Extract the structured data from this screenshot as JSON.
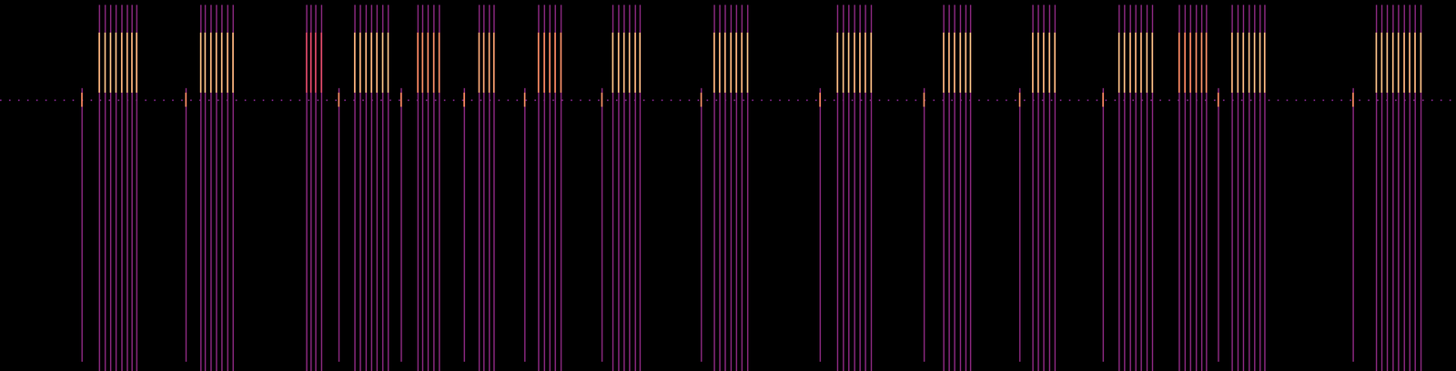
{
  "chart_data": {
    "type": "spectrogram",
    "tick_labels": false,
    "xlim": [
      0,
      1568
    ],
    "ylim": [
      0,
      400
    ],
    "bright_band": [
      300,
      365
    ],
    "faint_band": [
      0,
      395
    ],
    "faint_level": 0.4,
    "calls": [
      {
        "x": [
          107,
          113,
          119,
          125,
          131,
          137,
          142,
          147
        ],
        "level": 0.85
      },
      {
        "x": [
          216,
          221,
          227,
          233,
          239,
          245,
          251
        ],
        "level": 0.85
      },
      {
        "x": [
          330,
          335,
          340,
          346
        ],
        "level": 0.6
      },
      {
        "x": [
          382,
          388,
          394,
          400,
          406,
          412,
          418
        ],
        "level": 0.85
      },
      {
        "x": [
          450,
          455,
          461,
          467,
          473
        ],
        "level": 0.75
      },
      {
        "x": [
          516,
          521,
          527,
          532
        ],
        "level": 0.8
      },
      {
        "x": [
          580,
          586,
          592,
          598,
          604
        ],
        "level": 0.75
      },
      {
        "x": [
          660,
          666,
          672,
          678,
          684,
          689
        ],
        "level": 0.85
      },
      {
        "x": [
          769,
          775,
          781,
          787,
          793,
          799,
          805
        ],
        "level": 0.85
      },
      {
        "x": [
          902,
          908,
          914,
          920,
          926,
          932,
          938
        ],
        "level": 0.85
      },
      {
        "x": [
          1016,
          1022,
          1028,
          1034,
          1040,
          1045
        ],
        "level": 0.85
      },
      {
        "x": [
          1112,
          1118,
          1124,
          1130,
          1136
        ],
        "level": 0.85
      },
      {
        "x": [
          1205,
          1211,
          1217,
          1223,
          1229,
          1235,
          1241
        ],
        "level": 0.85
      },
      {
        "x": [
          1270,
          1276,
          1282,
          1288,
          1294,
          1299
        ],
        "level": 0.75
      },
      {
        "x": [
          1327,
          1333,
          1339,
          1345,
          1351,
          1357,
          1362
        ],
        "level": 0.85
      },
      {
        "x": [
          1482,
          1488,
          1494,
          1500,
          1506,
          1512,
          1518,
          1524,
          1530
        ],
        "level": 0.85
      }
    ],
    "onsets": {
      "x": [
        88,
        200,
        365,
        432,
        500,
        565,
        648,
        755,
        883,
        995,
        1098,
        1188,
        1312,
        1457
      ],
      "band": [
        10,
        305
      ],
      "peak_band": [
        285,
        300
      ],
      "level": 0.4,
      "peak_level": 0.75
    },
    "hum": {
      "y": 292,
      "level": 0.35
    }
  }
}
